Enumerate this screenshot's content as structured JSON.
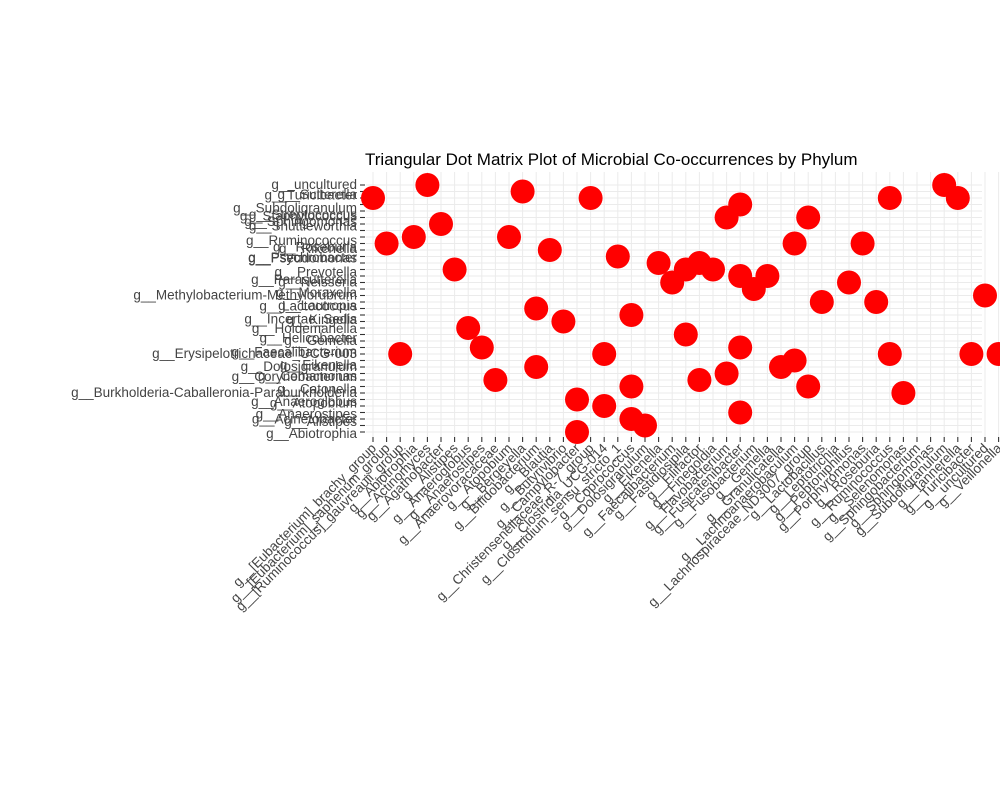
{
  "chart_data": {
    "type": "scatter",
    "title": "Triangular Dot Matrix Plot of Microbial Co-occurrences by Phylum",
    "xlabel": "",
    "ylabel": "",
    "grid": true,
    "legend": "none",
    "point_color": "#ff0000",
    "x_categories": [
      "g__[Eubacterium]_brachy_group",
      "g__[Eubacterium]_saphenum_group",
      "g__[Ruminococcus]_gauvreauii_group",
      "g__Abiotrophia",
      "g__Actinomyces",
      "g__Agathobacter",
      "g__Alistipes",
      "g__Anaeroglobus",
      "g__Anaerostipes",
      "g__Anaerovoracaceae",
      "g__Atopobium",
      "g__Bergeyella",
      "g__Bifidobacterium",
      "g__Blautia",
      "g__Butyrivibrio",
      "g__Campylobacter",
      "g__Christensenellaceae_R-7_group",
      "g__Clostridia_UCG-014",
      "g__Clostridium_sensu_stricto_1",
      "g__Coprococcus",
      "g__Dolosigranulum",
      "g__Eikenella",
      "g__Faecalibacterium",
      "g__Fastidiosipila",
      "g__Filifactor",
      "g__Finegoldia",
      "g__Flavobacterium",
      "g__Fusicatenibacter",
      "g__Fusobacterium",
      "g__Gemella",
      "g__Granulicatella",
      "g__Lachnoanaerobaculum",
      "g__Lachnospiraceae_ND3007_group",
      "g__Lactobacillus",
      "g__Leptotrichia",
      "g__Peptoniphilus",
      "g__Porphyromonas",
      "g__Roseburia",
      "g__Ruminococcus",
      "g__Selenomonas",
      "g__Sphingobacterium",
      "g__Sphingomonas",
      "g__Subdoligranulum",
      "g__Tannerella",
      "g__Turicibacter",
      "g__uncultured",
      "g__Veillonella"
    ],
    "y_categories": [
      "g__Abiotrophia",
      "g__Acinetobacter",
      "g__Alistipes",
      "g__Anaerostipes",
      "g__Anaeroglobus",
      "g__Atopobium",
      "g__Burkholderia-Caballeronia-Paraburkholderia",
      "g__Catonella",
      "g__Corynebacterium",
      "g__Comamonas",
      "g__Dolosigranulum",
      "g__Eikenella",
      "g__Erysipelotrichaceae_UCG-003",
      "g__Faecalibacterium",
      "g__Gemella",
      "g__Helicobacter",
      "g__Holdemanella",
      "g__Incertae_Sedis",
      "g__Kingella",
      "g__Lactococcus",
      "g__Lautropia",
      "g__Methylobacterium-Methylorubrum",
      "g__Moraxella",
      "g__Neisseria",
      "g__Parasutterella",
      "g__Prevotella",
      "g__Psychrobacter",
      "g__Pseudomonas",
      "g__Rikenella",
      "g__Roseburia",
      "g__Ruminococcus",
      "g__Shuttleworthia",
      "g__Sphingomonas",
      "g__Staphylococcus",
      "g__Streptococcus",
      "g__Subdoligranulum",
      "g__Sutterella",
      "g__Turicibacter",
      "g__uncultured"
    ],
    "y_label_offsets": [
      2,
      -6,
      3,
      2,
      -4,
      4,
      0,
      3,
      -3,
      3,
      0,
      5,
      0,
      5,
      0,
      4,
      1,
      -2,
      5,
      -2,
      4,
      0,
      4,
      0,
      4,
      3,
      -5,
      2,
      -1,
      4,
      4,
      -4,
      -2,
      -1,
      4,
      4,
      -3,
      4,
      0
    ],
    "points": [
      {
        "x": "g__[Eubacterium]_brachy_group",
        "y": "g__Sutterella"
      },
      {
        "x": "g__[Eubacterium]_saphenum_group",
        "y": "g__Roseburia"
      },
      {
        "x": "g__[Ruminococcus]_gauvreauii_group",
        "y": "g__Erysipelotrichaceae_UCG-003"
      },
      {
        "x": "g__Abiotrophia",
        "y": "g__Ruminococcus"
      },
      {
        "x": "g__Actinomyces",
        "y": "g__uncultured"
      },
      {
        "x": "g__Agathobacter",
        "y": "g__Sphingomonas"
      },
      {
        "x": "g__Alistipes",
        "y": "g__Prevotella"
      },
      {
        "x": "g__Anaeroglobus",
        "y": "g__Holdemanella"
      },
      {
        "x": "g__Anaerostipes",
        "y": "g__Faecalibacterium"
      },
      {
        "x": "g__Anaerovoracaceae",
        "y": "g__Corynebacterium"
      },
      {
        "x": "g__Atopobium",
        "y": "g__Ruminococcus"
      },
      {
        "x": "g__Bergeyella",
        "y": "g__Turicibacter"
      },
      {
        "x": "g__Bifidobacterium",
        "y": "g__Lactococcus"
      },
      {
        "x": "g__Bifidobacterium",
        "y": "g__Dolosigranulum"
      },
      {
        "x": "g__Blautia",
        "y": "g__Rikenella"
      },
      {
        "x": "g__Butyrivibrio",
        "y": "g__Incertae_Sedis"
      },
      {
        "x": "g__Campylobacter",
        "y": "g__Atopobium"
      },
      {
        "x": "g__Campylobacter",
        "y": "g__Abiotrophia"
      },
      {
        "x": "g__Christensenellaceae_R-7_group",
        "y": "g__Sutterella"
      },
      {
        "x": "g__Clostridia_UCG-014",
        "y": "g__Erysipelotrichaceae_UCG-003"
      },
      {
        "x": "g__Clostridia_UCG-014",
        "y": "g__Anaeroglobus"
      },
      {
        "x": "g__Clostridium_sensu_stricto_1",
        "y": "g__Pseudomonas"
      },
      {
        "x": "g__Coprococcus",
        "y": "g__Kingella"
      },
      {
        "x": "g__Coprococcus",
        "y": "g__Catonella"
      },
      {
        "x": "g__Coprococcus",
        "y": "g__Alistipes"
      },
      {
        "x": "g__Dolosigranulum",
        "y": "g__Acinetobacter"
      },
      {
        "x": "g__Eikenella",
        "y": "g__Psychrobacter"
      },
      {
        "x": "g__Faecalibacterium",
        "y": "g__Neisseria"
      },
      {
        "x": "g__Fastidiosipila",
        "y": "g__Prevotella"
      },
      {
        "x": "g__Fastidiosipila",
        "y": "g__Helicobacter"
      },
      {
        "x": "g__Filifactor",
        "y": "g__Psychrobacter"
      },
      {
        "x": "g__Filifactor",
        "y": "g__Corynebacterium"
      },
      {
        "x": "g__Finegoldia",
        "y": "g__Prevotella"
      },
      {
        "x": "g__Flavobacterium",
        "y": "g__Staphylococcus"
      },
      {
        "x": "g__Flavobacterium",
        "y": "g__Comamonas"
      },
      {
        "x": "g__Fusicatenibacter",
        "y": "g__Subdoligranulum"
      },
      {
        "x": "g__Fusicatenibacter",
        "y": "g__Parasutterella"
      },
      {
        "x": "g__Fusicatenibacter",
        "y": "g__Faecalibacterium"
      },
      {
        "x": "g__Fusicatenibacter",
        "y": "g__Anaerostipes"
      },
      {
        "x": "g__Fusobacterium",
        "y": "g__Moraxella"
      },
      {
        "x": "g__Gemella",
        "y": "g__Parasutterella"
      },
      {
        "x": "g__Granulicatella",
        "y": "g__Dolosigranulum"
      },
      {
        "x": "g__Lachnoanaerobaculum",
        "y": "g__Roseburia"
      },
      {
        "x": "g__Lachnoanaerobaculum",
        "y": "g__Eikenella"
      },
      {
        "x": "g__Lachnospiraceae_ND3007_group",
        "y": "g__Staphylococcus"
      },
      {
        "x": "g__Lachnospiraceae_ND3007_group",
        "y": "g__Catonella"
      },
      {
        "x": "g__Lactobacillus",
        "y": "g__Lautropia"
      },
      {
        "x": "g__Peptoniphilus",
        "y": "g__Neisseria"
      },
      {
        "x": "g__Porphyromonas",
        "y": "g__Roseburia"
      },
      {
        "x": "g__Roseburia",
        "y": "g__Lautropia"
      },
      {
        "x": "g__Ruminococcus",
        "y": "g__Sutterella"
      },
      {
        "x": "g__Ruminococcus",
        "y": "g__Erysipelotrichaceae_UCG-003"
      },
      {
        "x": "g__Selenomonas",
        "y": "g__Burkholderia-Caballeronia-Paraburkholderia"
      },
      {
        "x": "g__Subdoligranulum",
        "y": "g__uncultured"
      },
      {
        "x": "g__Tannerella",
        "y": "g__Sutterella"
      },
      {
        "x": "g__Turicibacter",
        "y": "g__Erysipelotrichaceae_UCG-003"
      },
      {
        "x": "g__uncultured",
        "y": "g__Methylobacterium-Methylorubrum"
      },
      {
        "x": "g__Veillonella",
        "y": "g__Erysipelotrichaceae_UCG-003"
      }
    ]
  }
}
